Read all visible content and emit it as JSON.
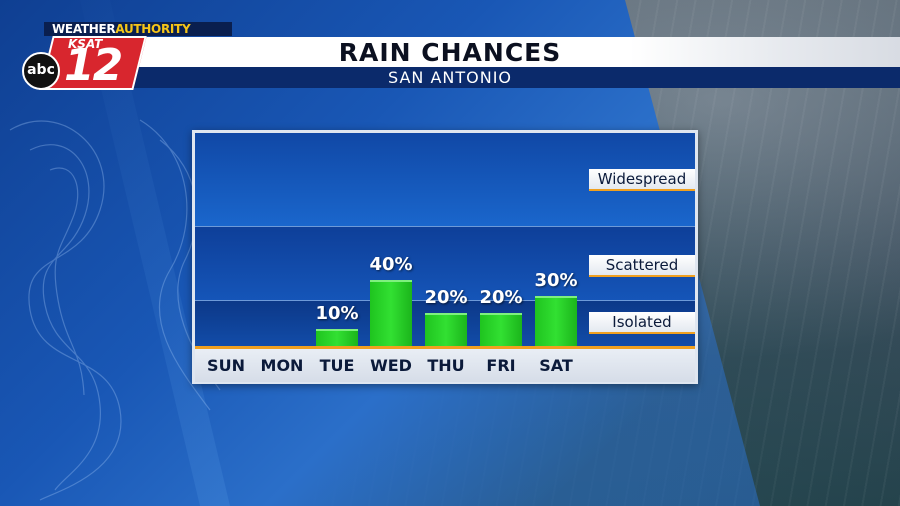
{
  "brand": {
    "weather_prefix": "WEATHER",
    "weather_suffix": "AUTHORITY",
    "station": "KSAT",
    "channel": "12",
    "network": "abc"
  },
  "header": {
    "title": "RAIN CHANCES",
    "subtitle": "SAN ANTONIO"
  },
  "colors": {
    "bar": "#2dd62d",
    "baseline": "#f0a020",
    "panel": "#1a5fc4"
  },
  "chart_data": {
    "type": "bar",
    "title": "RAIN CHANCES",
    "subtitle": "SAN ANTONIO",
    "categories": [
      "SUN",
      "MON",
      "TUE",
      "WED",
      "THU",
      "FRI",
      "SAT"
    ],
    "values": [
      0,
      0,
      10,
      40,
      20,
      20,
      30
    ],
    "value_labels": [
      "",
      "",
      "10%",
      "40%",
      "20%",
      "20%",
      "30%"
    ],
    "unit": "%",
    "levels": [
      {
        "name": "Widespread"
      },
      {
        "name": "Scattered"
      },
      {
        "name": "Isolated"
      }
    ],
    "ylim": [
      0,
      100
    ],
    "grid": false,
    "legend": "none"
  }
}
